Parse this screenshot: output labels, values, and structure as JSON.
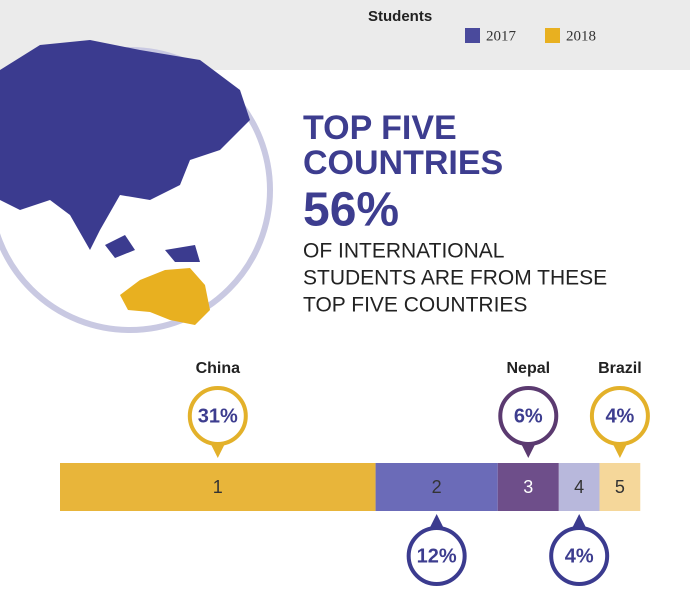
{
  "header": {
    "title": "Students",
    "legend": [
      {
        "name": "2017",
        "color": "#4a4a9c"
      },
      {
        "name": "2018",
        "color": "#e8b020"
      }
    ]
  },
  "headline": [
    "TOP FIVE",
    "COUNTRIES"
  ],
  "stat": "56%",
  "description": [
    "OF INTERNATIONAL",
    "STUDENTS ARE FROM THESE",
    "TOP FIVE COUNTRIES"
  ],
  "chart_data": {
    "type": "stacked-bar",
    "categories": [
      "China",
      null,
      "Nepal",
      null,
      "Brazil"
    ],
    "ranks": [
      1,
      2,
      3,
      4,
      5
    ],
    "values": [
      31,
      12,
      6,
      4,
      4
    ],
    "value_labels": [
      "31%",
      "12%",
      "6%",
      "4%",
      "4%"
    ],
    "colors": [
      "#e8b53a",
      "#6b6bb8",
      "#6e4e8a",
      "#b8b8dc",
      "#f5d79a"
    ],
    "pin_colors": [
      "#e3b12a",
      "#3b3b8f",
      "#5b3a70",
      "#3b3b8f",
      "#e3b12a"
    ],
    "pin_side": [
      "above",
      "below",
      "above",
      "below",
      "above"
    ]
  }
}
